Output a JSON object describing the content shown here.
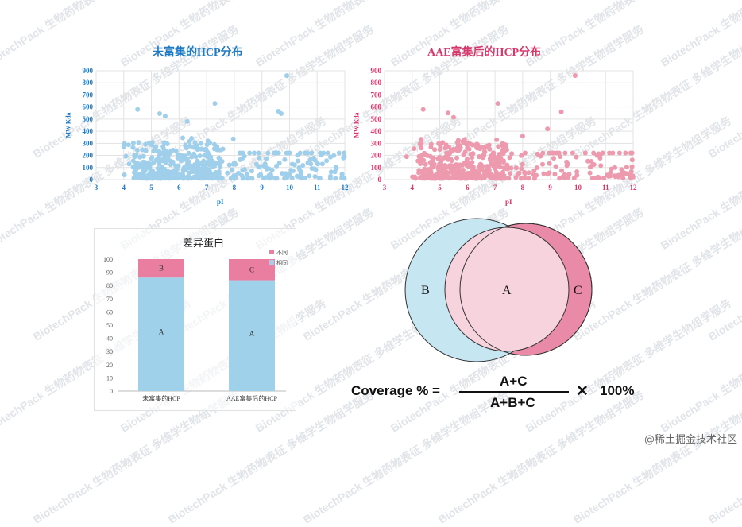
{
  "watermark": "BiotechPack 生物药物表征 多维学生物组学服务",
  "footer": "@稀土掘金技术社区",
  "colors": {
    "blue": "#1f7bc4",
    "pink": "#d9376b",
    "scatter_blue": "#9fcfea",
    "scatter_pink": "#ee9aae",
    "bar_blue": "#9fd2ea",
    "bar_pink": "#ea7ea0"
  },
  "chart_data": [
    {
      "type": "scatter",
      "title": "未富集的HCP分布",
      "xlabel": "pI",
      "ylabel": "MW Kda",
      "xlim": [
        3,
        12
      ],
      "ylim": [
        0,
        900
      ],
      "xticks": [
        "3",
        "4",
        "5",
        "6",
        "7",
        "8",
        "9",
        "10",
        "11",
        "12"
      ],
      "yticks": [
        "0",
        "100",
        "200",
        "300",
        "400",
        "500",
        "600",
        "700",
        "800",
        "900"
      ],
      "notable_points": [
        [
          4.5,
          580
        ],
        [
          5.3,
          545
        ],
        [
          5.5,
          525
        ],
        [
          6.3,
          480
        ],
        [
          7.3,
          630
        ],
        [
          9.6,
          565
        ],
        [
          9.7,
          545
        ],
        [
          9.9,
          860
        ],
        [
          4.0,
          270
        ],
        [
          11.9,
          45
        ]
      ]
    },
    {
      "type": "scatter",
      "title": "AAE富集后的HCP分布",
      "xlabel": "pI",
      "ylabel": "MW Kda",
      "xlim": [
        3,
        12
      ],
      "ylim": [
        0,
        900
      ],
      "xticks": [
        "3",
        "4",
        "5",
        "6",
        "7",
        "8",
        "9",
        "10",
        "11",
        "12"
      ],
      "yticks": [
        "0",
        "100",
        "200",
        "300",
        "400",
        "500",
        "600",
        "700",
        "800",
        "900"
      ],
      "notable_points": [
        [
          4.4,
          580
        ],
        [
          5.3,
          550
        ],
        [
          5.5,
          515
        ],
        [
          7.1,
          630
        ],
        [
          8.9,
          420
        ],
        [
          9.4,
          560
        ],
        [
          9.9,
          860
        ],
        [
          8.0,
          360
        ],
        [
          11.9,
          35
        ],
        [
          3.8,
          190
        ]
      ]
    },
    {
      "type": "bar",
      "stacked": true,
      "title": "差异蛋白",
      "categories": [
        "未富集的HCP",
        "AAE富集后的HCP"
      ],
      "series": [
        {
          "name": "相同",
          "values": [
            86,
            84
          ],
          "segment_labels": [
            "A",
            "A"
          ]
        },
        {
          "name": "不同",
          "values": [
            14,
            16
          ],
          "segment_labels": [
            "B",
            "C"
          ]
        }
      ],
      "yticks": [
        "0",
        "10",
        "20",
        "30",
        "40",
        "50",
        "60",
        "70",
        "80",
        "90",
        "100"
      ],
      "ylim": [
        0,
        100
      ]
    }
  ],
  "venn": {
    "label_b": "B",
    "label_a": "A",
    "label_c": "C"
  },
  "formula": {
    "lhs": "Coverage % =",
    "numerator": "A+C",
    "denominator": "A+B+C",
    "times": "✕",
    "rhs": "100%"
  }
}
